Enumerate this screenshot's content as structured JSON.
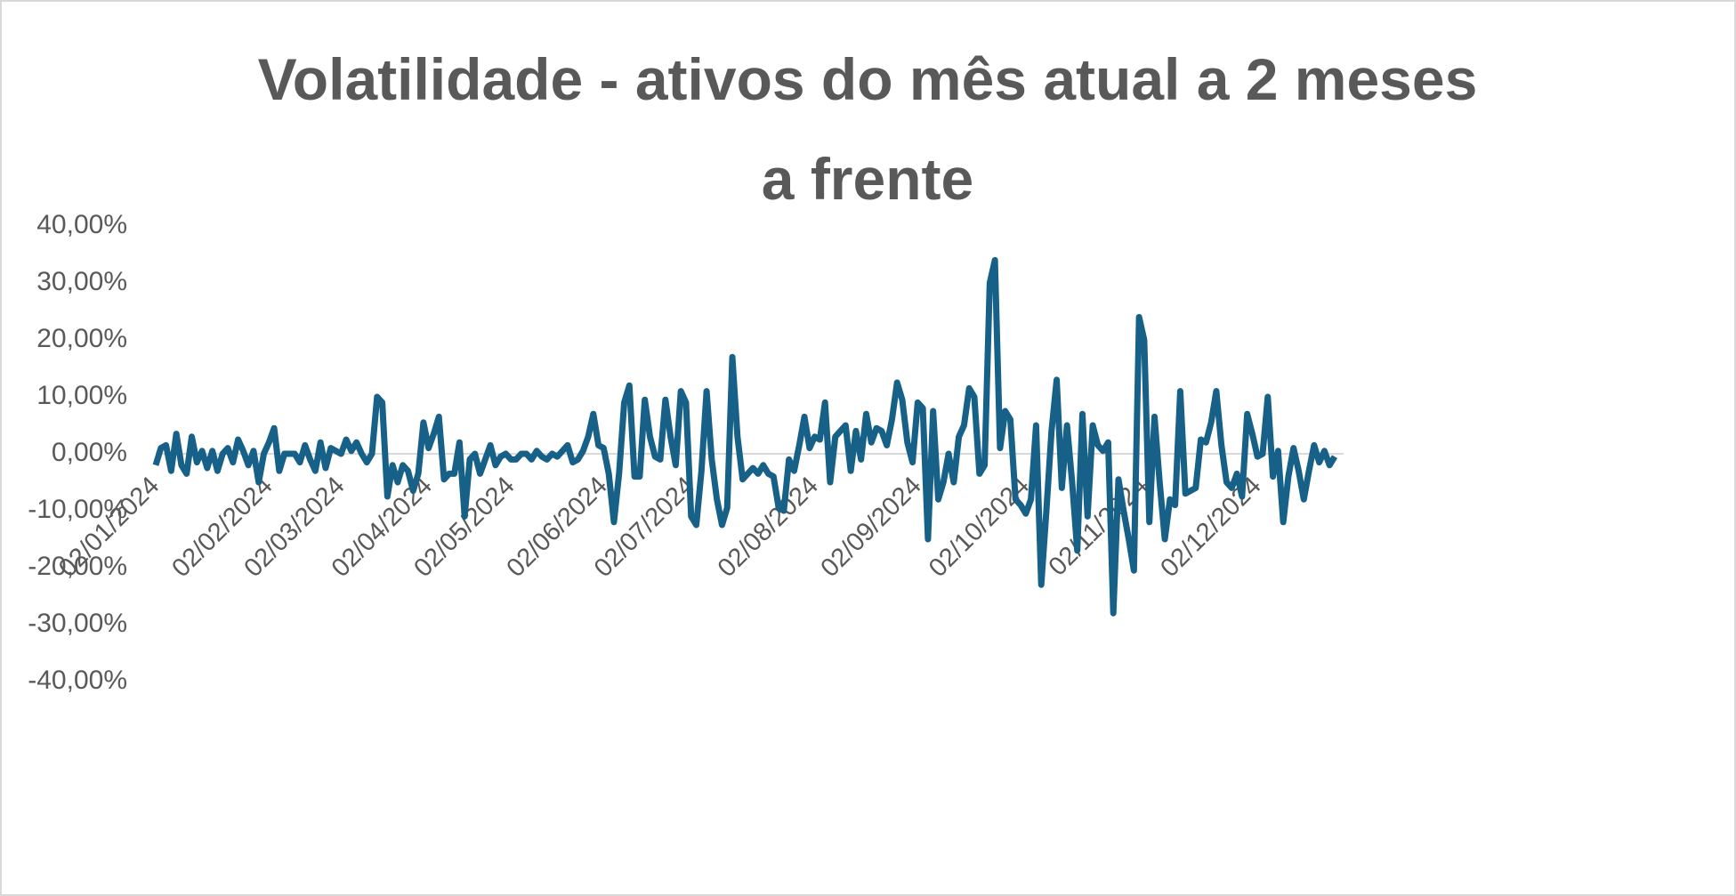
{
  "chart_data": {
    "type": "line",
    "title": "Volatilidade - ativos do mês atual a 2 meses a frente",
    "categories": [
      "02/01/2024",
      null,
      null,
      null,
      null,
      null,
      null,
      null,
      null,
      null,
      null,
      null,
      null,
      null,
      null,
      null,
      null,
      null,
      null,
      null,
      null,
      null,
      "02/02/2024",
      null,
      null,
      null,
      null,
      null,
      null,
      null,
      null,
      null,
      null,
      null,
      null,
      null,
      "02/03/2024",
      null,
      null,
      null,
      null,
      null,
      null,
      null,
      null,
      null,
      null,
      null,
      null,
      null,
      null,
      null,
      null,
      "02/04/2024",
      null,
      null,
      null,
      null,
      null,
      null,
      null,
      null,
      null,
      null,
      null,
      null,
      null,
      null,
      null,
      "02/05/2024",
      null,
      null,
      null,
      null,
      null,
      null,
      null,
      null,
      null,
      null,
      null,
      null,
      null,
      null,
      null,
      null,
      null,
      "02/06/2024",
      null,
      null,
      null,
      null,
      null,
      null,
      null,
      null,
      null,
      null,
      null,
      null,
      null,
      null,
      null,
      null,
      "02/07/2024",
      null,
      null,
      null,
      null,
      null,
      null,
      null,
      null,
      null,
      null,
      null,
      null,
      null,
      null,
      null,
      null,
      null,
      null,
      null,
      null,
      null,
      null,
      null,
      "02/08/2024",
      null,
      null,
      null,
      null,
      null,
      null,
      null,
      null,
      null,
      null,
      null,
      null,
      null,
      null,
      null,
      null,
      null,
      null,
      null,
      "02/09/2024",
      null,
      null,
      null,
      null,
      null,
      null,
      null,
      null,
      null,
      null,
      null,
      null,
      null,
      null,
      null,
      null,
      null,
      null,
      null,
      null,
      "02/10/2024",
      null,
      null,
      null,
      null,
      null,
      null,
      null,
      null,
      null,
      null,
      null,
      null,
      null,
      null,
      null,
      null,
      null,
      null,
      null,
      null,
      null,
      null,
      "02/11/2024",
      null,
      null,
      null,
      null,
      null,
      null,
      null,
      null,
      null,
      null,
      null,
      null,
      null,
      null,
      null,
      null,
      null,
      null,
      null,
      null,
      null,
      "02/12/2024",
      null,
      null,
      null,
      null,
      null,
      null,
      null,
      null,
      null,
      null,
      null,
      null,
      null,
      null,
      null
    ],
    "series": [
      {
        "color": "#176087",
        "values": [
          -2,
          1,
          1.5,
          -3,
          3.5,
          -2,
          -3.5,
          3,
          -1.5,
          0.5,
          -2.5,
          0.5,
          -3,
          0,
          1,
          -1.5,
          2.5,
          0.5,
          -2,
          0.5,
          -5,
          0,
          2,
          4.5,
          -3,
          0,
          0,
          0,
          -1.5,
          1.5,
          -1,
          -3,
          2,
          -2.5,
          1,
          0.5,
          0,
          2.5,
          0.5,
          2,
          0,
          -1.5,
          0,
          10,
          9,
          -7.5,
          -2,
          -5,
          -2,
          -3,
          -6.5,
          -3.5,
          5.5,
          1,
          3.5,
          6.5,
          -4.5,
          -3.5,
          -3.5,
          2,
          -11,
          -1,
          0,
          -3.5,
          -1,
          1.5,
          -2,
          -0.5,
          0,
          -1,
          -1,
          0,
          0,
          -1,
          0.5,
          -0.5,
          -1,
          0,
          -0.5,
          0.5,
          1.5,
          -1.5,
          -1,
          0.5,
          3,
          7,
          1.5,
          1,
          -3.5,
          -12,
          -3.5,
          9,
          12,
          -4,
          -4,
          9.5,
          3,
          -0.5,
          -1,
          9.5,
          3,
          -2,
          11,
          9,
          -11,
          -12.5,
          -3,
          11,
          -1,
          -8,
          -12.5,
          -9.5,
          17,
          3,
          -4.5,
          -3.5,
          -2.5,
          -3.5,
          -2,
          -3.5,
          -4,
          -9.5,
          -10,
          -1,
          -3,
          1.5,
          6.5,
          1,
          3,
          2.5,
          9,
          -5,
          3,
          4,
          5,
          -3,
          4,
          -1,
          7,
          2,
          4.5,
          4,
          1.5,
          6,
          12.5,
          9.5,
          2,
          -1.5,
          9,
          8,
          -15,
          7.5,
          -8,
          -5,
          0,
          -5,
          3,
          5,
          11.5,
          10,
          -3.5,
          -2,
          30,
          34,
          1,
          7.5,
          6,
          -8,
          -9,
          -10.5,
          -8,
          5,
          -23,
          -10,
          4,
          13,
          -6,
          5,
          -5,
          -17,
          7,
          -11,
          5,
          1.5,
          0.5,
          2,
          -28,
          -4.5,
          -10,
          -15,
          -20.5,
          24,
          20,
          -12,
          6.5,
          -5,
          -15,
          -8,
          -9,
          11,
          -7,
          -6.5,
          -6,
          2.5,
          2,
          5.5,
          11,
          1.5,
          -5,
          -6,
          -3.5,
          -7.5,
          7,
          3.5,
          -0.5,
          0,
          10,
          -4,
          0.5,
          -12,
          -4,
          1,
          -3,
          -8,
          -3,
          1.5,
          -1.5,
          0.5,
          -2,
          -0.5
        ]
      }
    ],
    "ylim": [
      -40,
      40
    ],
    "yticks": [
      {
        "value": -40,
        "label": "-40,00%"
      },
      {
        "value": -30,
        "label": "-30,00%"
      },
      {
        "value": -20,
        "label": "-20,00%"
      },
      {
        "value": -10,
        "label": "-10,00%"
      },
      {
        "value": 0,
        "label": "0,00%"
      },
      {
        "value": 10,
        "label": "10,00%"
      },
      {
        "value": 20,
        "label": "20,00%"
      },
      {
        "value": 30,
        "label": "30,00%"
      },
      {
        "value": 40,
        "label": "40,00%"
      }
    ],
    "grid": false
  }
}
